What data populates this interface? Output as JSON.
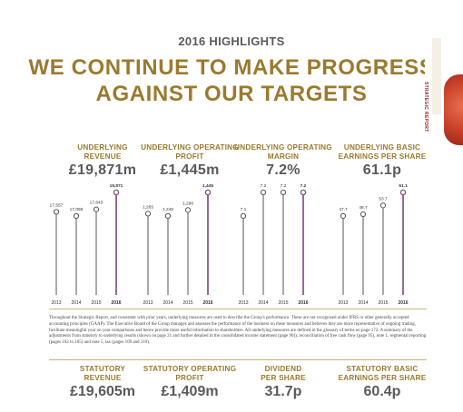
{
  "header": {
    "kicker": "2016 HIGHLIGHTS",
    "title_line1": "WE CONTINUE TO MAKE PROGRESS",
    "title_line2": "AGAINST OUR TARGETS"
  },
  "side_tab": {
    "label": "STRATEGIC REPORT"
  },
  "metrics": [
    {
      "label_line1": "UNDERLYING",
      "label_line2": "REVENUE",
      "value": "£19,871m"
    },
    {
      "label_line1": "UNDERLYING OPERATING",
      "label_line2": "PROFIT",
      "value": "£1,445m"
    },
    {
      "label_line1": "UNDERLYING OPERATING",
      "label_line2": "MARGIN",
      "value": "7.2%"
    },
    {
      "label_line1": "UNDERLYING BASIC",
      "label_line2": "EARNINGS PER SHARE",
      "value": "61.1p"
    }
  ],
  "chart_data": [
    {
      "type": "bar",
      "categories": [
        "2013",
        "2014",
        "2015",
        "2016"
      ],
      "values": [
        17557,
        17058,
        17843,
        19871
      ],
      "value_labels": [
        "17,557",
        "17,058",
        "17,843",
        "19,871"
      ],
      "highlight_index": 3
    },
    {
      "type": "bar",
      "categories": [
        "2013",
        "2014",
        "2015",
        "2016"
      ],
      "values": [
        1265,
        1245,
        1296,
        1445
      ],
      "value_labels": [
        "1,265",
        "1,245",
        "1,296",
        "1,445"
      ],
      "highlight_index": 3
    },
    {
      "type": "bar",
      "categories": [
        "2013",
        "2014",
        "2015",
        "2016"
      ],
      "values": [
        7.1,
        7.2,
        7.2,
        7.2
      ],
      "value_labels": [
        "7.1",
        "7.2",
        "7.2",
        "7.2"
      ],
      "highlight_index": 3
    },
    {
      "type": "bar",
      "categories": [
        "2013",
        "2014",
        "2015",
        "2016"
      ],
      "values": [
        47.7,
        48.7,
        53.7,
        61.1
      ],
      "value_labels": [
        "47.7",
        "48.7",
        "53.7",
        "61.1"
      ],
      "highlight_index": 3
    }
  ],
  "colors": {
    "accent_gold": "#9b7a2e",
    "highlight_purple": "#8a5a8c",
    "stem_grey": "#555555"
  },
  "footnote": "Throughout the Strategic Report, and consistent with prior years, underlying measures are used to describe the Group's performance. These are not recognised under IFRS or other generally accepted accounting principles (GAAP). The Executive Board of the Group manages and assesses the performance of the business on these measures and believes they are more representative of ongoing trading, facilitate meaningful year on year comparisons and hence provide more useful information to shareholders. All underlying measures are defined in the glossary of terms on page 172. A summary of the adjustments from statutory to underlying results (shown on page 21 and further detailed in the consolidated income statement (page 90)), reconciliation of free cash flow (page 95), note 1, segmental reporting (pages 102 to 105) and note 5, tax (pages 109 and 110).",
  "statutory": [
    {
      "label_line1": "STATUTORY",
      "label_line2": "REVENUE",
      "value": "£19,605m"
    },
    {
      "label_line1": "STATUTORY OPERATING",
      "label_line2": "PROFIT",
      "value": "£1,409m"
    },
    {
      "label_line1": "DIVIDEND",
      "label_line2": "PER SHARE",
      "value": "31.7p"
    },
    {
      "label_line1": "STATUTORY BASIC",
      "label_line2": "EARNINGS PER SHARE",
      "value": "60.4p"
    }
  ]
}
